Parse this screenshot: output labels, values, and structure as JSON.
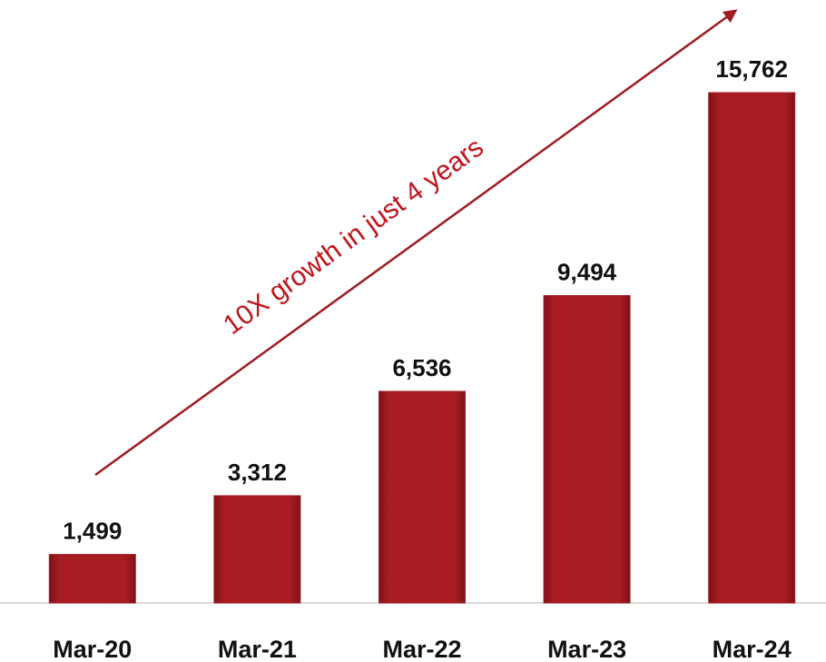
{
  "chart_data": {
    "type": "bar",
    "annotation": "10X growth in just 4 years",
    "categories": [
      "Mar-20",
      "Mar-21",
      "Mar-22",
      "Mar-23",
      "Mar-24"
    ],
    "values": [
      1499,
      3312,
      6536,
      9494,
      15762
    ],
    "value_labels": [
      "1,499",
      "3,312",
      "6,536",
      "9,494",
      "15,762"
    ],
    "color": "#a71d23"
  }
}
